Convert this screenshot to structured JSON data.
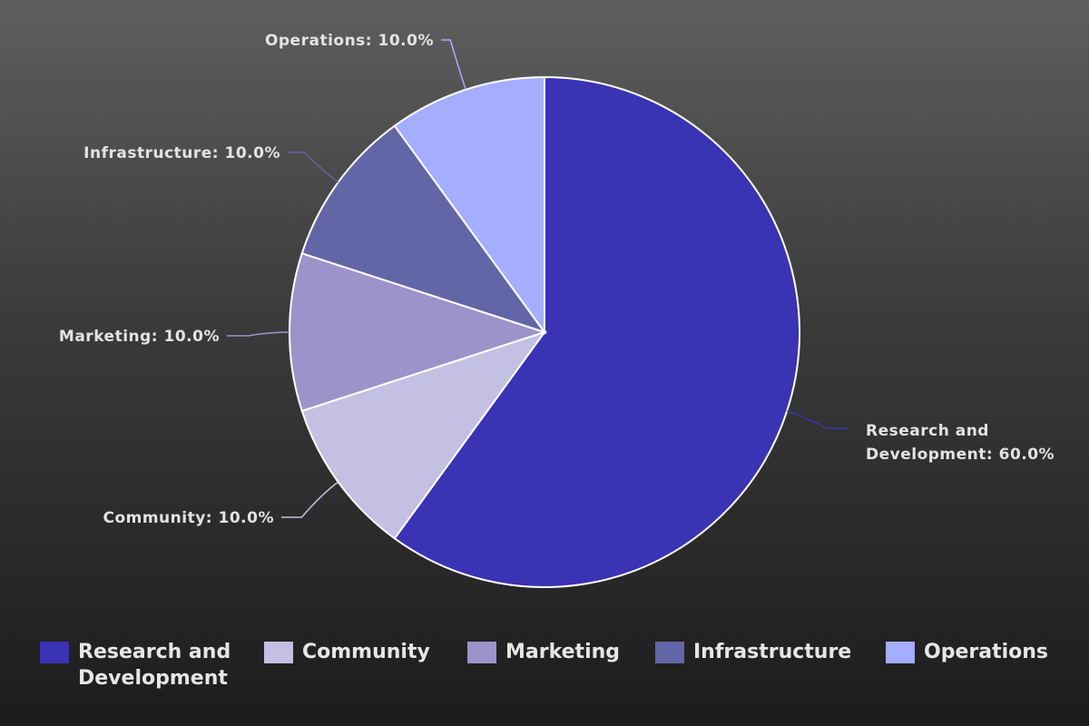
{
  "chart_data": {
    "type": "pie",
    "slices": [
      {
        "label": "Research and Development",
        "value": 60.0,
        "color": "#3a33b3",
        "display": "Research and Development: 60.0%"
      },
      {
        "label": "Community",
        "value": 10.0,
        "color": "#c3c0e3",
        "display": "Community: 10.0%"
      },
      {
        "label": "Marketing",
        "value": 10.0,
        "color": "#9d93cb",
        "display": "Marketing: 10.0%"
      },
      {
        "label": "Infrastructure",
        "value": 10.0,
        "color": "#6366a6",
        "display": "Infrastructure: 10.0%"
      },
      {
        "label": "Operations",
        "value": 10.0,
        "color": "#a4adfe",
        "display": "Operations: 10.0%"
      }
    ],
    "legend": {
      "position": "bottom",
      "items": [
        "Research and Development",
        "Community",
        "Marketing",
        "Infrastructure",
        "Operations"
      ]
    },
    "slice_border_color": "#ffffff",
    "label_color": "#e3e3e3"
  }
}
